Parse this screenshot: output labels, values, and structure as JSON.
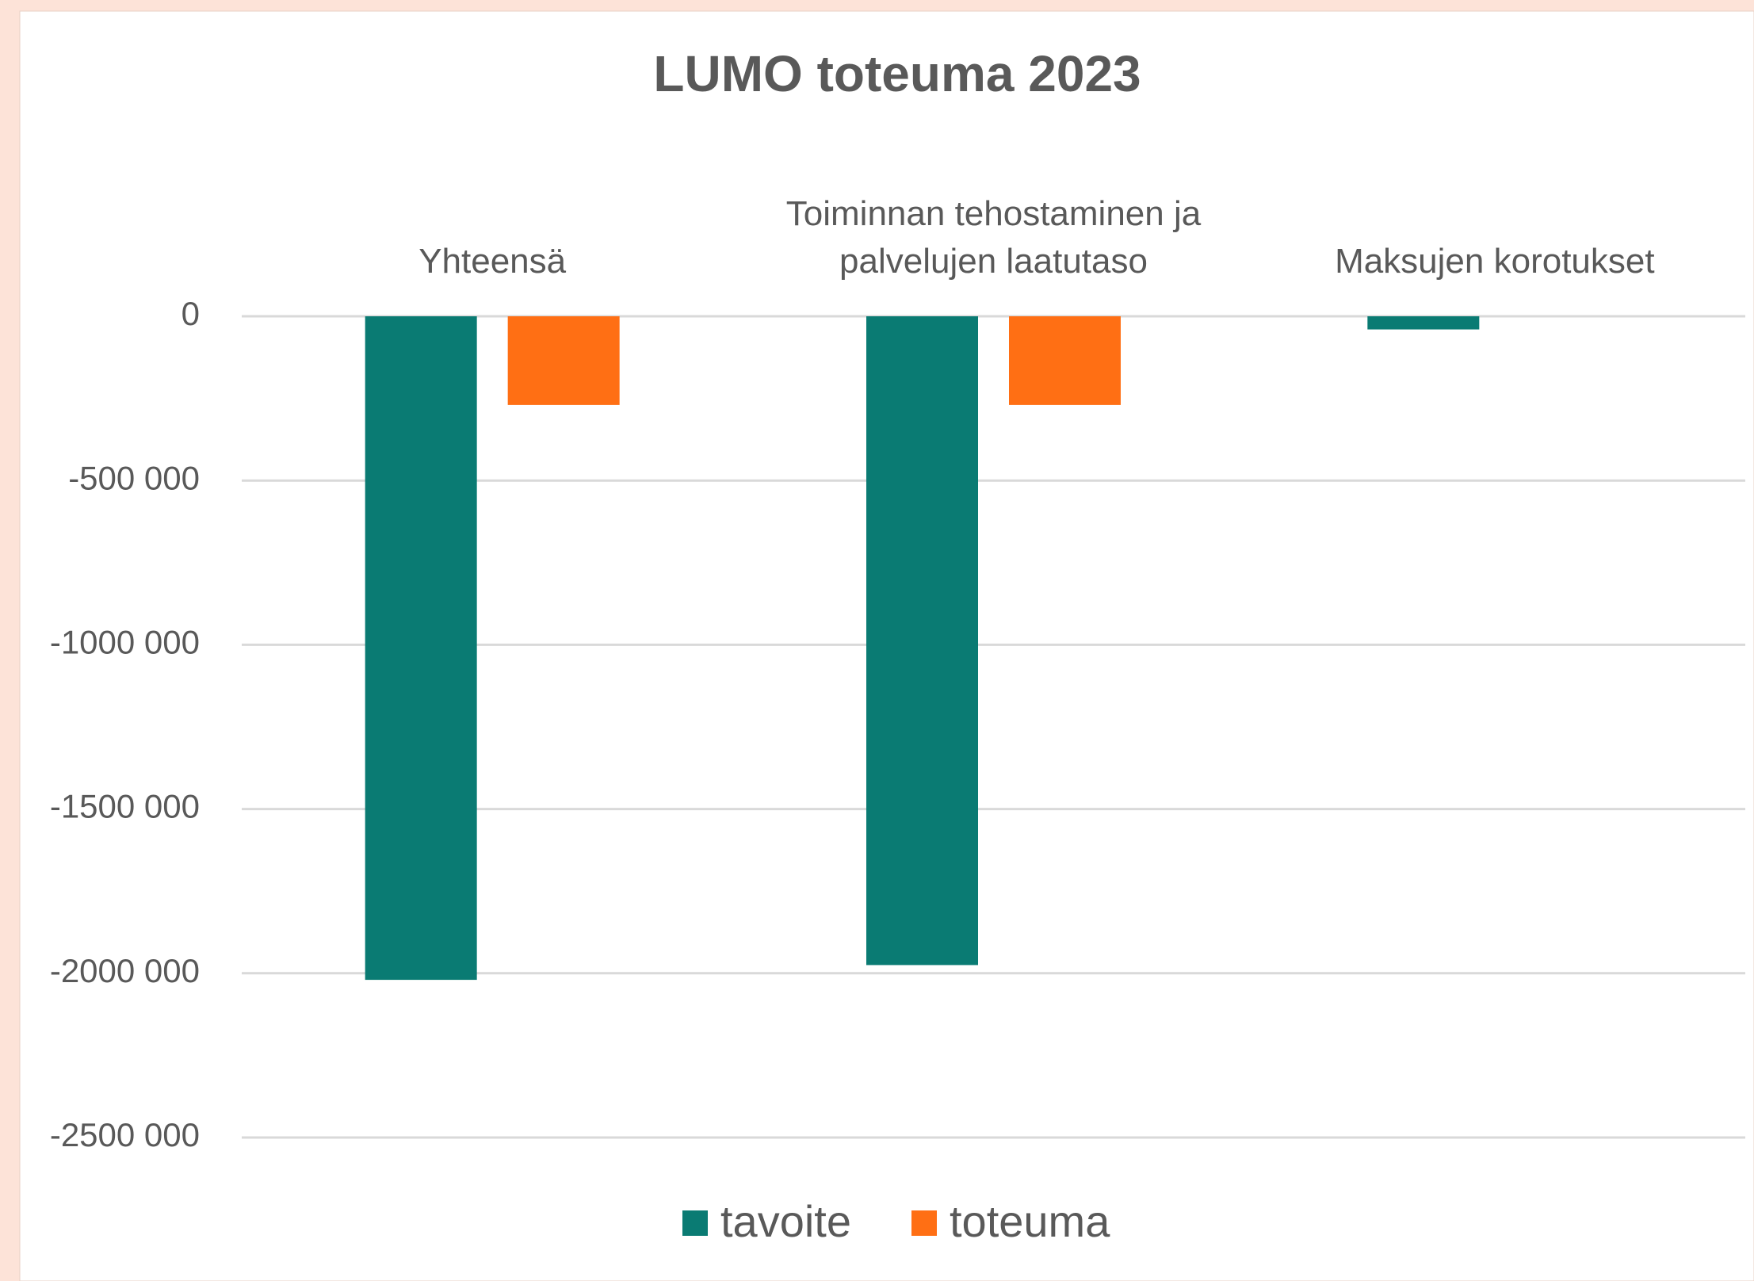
{
  "chart_data": {
    "type": "bar",
    "title": "LUMO toteuma 2023",
    "categories": [
      "Yhteensä",
      "Toiminnan tehostaminen ja palvelujen laatutaso",
      "Maksujen korotukset"
    ],
    "series": [
      {
        "name": "tavoite",
        "color": "#0a7b73",
        "values": [
          -2020000,
          -1975000,
          -40000
        ]
      },
      {
        "name": "toteuma",
        "color": "#ff6f14",
        "values": [
          -270000,
          -270000,
          0
        ]
      }
    ],
    "ylim": [
      -2500000,
      0
    ],
    "yticks": [
      0,
      {
        "value": -500000,
        "label": "-500 000"
      },
      {
        "value": -1000000,
        "label": "-1000 000"
      },
      {
        "value": -1500000,
        "label": "-1500 000"
      },
      {
        "value": -2000000,
        "label": "-2000 000"
      },
      {
        "value": -2500000,
        "label": "-2500 000"
      }
    ],
    "grid": true,
    "legend": "bottom"
  }
}
